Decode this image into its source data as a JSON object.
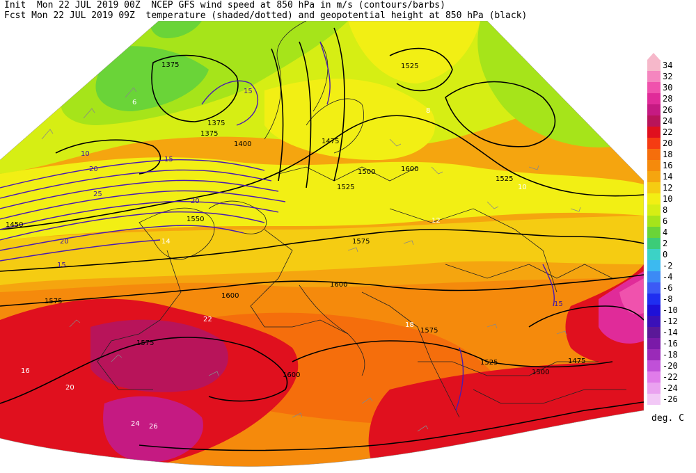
{
  "header": {
    "line1": "Init  Mon 22 JUL 2019 00Z  NCEP GFS wind speed at 850 hPa in m/s (contours/barbs)",
    "line2": "Fcst Mon 22 JUL 2019 09Z  temperature (shaded/dotted) and geopotential height at 850 hPa (black)"
  },
  "legend": {
    "units": "deg. C",
    "entries": [
      {
        "label": "34",
        "color": "#f6b8ca"
      },
      {
        "label": "32",
        "color": "#f586bf"
      },
      {
        "label": "30",
        "color": "#f052ad"
      },
      {
        "label": "28",
        "color": "#e02b99"
      },
      {
        "label": "26",
        "color": "#c51a82"
      },
      {
        "label": "24",
        "color": "#b8145a"
      },
      {
        "label": "22",
        "color": "#e0101e"
      },
      {
        "label": "20",
        "color": "#f53c12"
      },
      {
        "label": "18",
        "color": "#f56e0c"
      },
      {
        "label": "16",
        "color": "#f58a0c"
      },
      {
        "label": "14",
        "color": "#f5a50f"
      },
      {
        "label": "12",
        "color": "#f5cc12"
      },
      {
        "label": "10",
        "color": "#f2ef14"
      },
      {
        "label": "8",
        "color": "#d6ee14"
      },
      {
        "label": "6",
        "color": "#a6e41a"
      },
      {
        "label": "4",
        "color": "#6ad438"
      },
      {
        "label": "2",
        "color": "#3ccc78"
      },
      {
        "label": "0",
        "color": "#3cd2c6"
      },
      {
        "label": "-2",
        "color": "#3cbaf0"
      },
      {
        "label": "-4",
        "color": "#3c8af5"
      },
      {
        "label": "-6",
        "color": "#3c5af5"
      },
      {
        "label": "-8",
        "color": "#1f2ef0"
      },
      {
        "label": "-10",
        "color": "#1e10d8"
      },
      {
        "label": "-12",
        "color": "#3a10b8"
      },
      {
        "label": "-14",
        "color": "#5a1898"
      },
      {
        "label": "-16",
        "color": "#7a1aa8"
      },
      {
        "label": "-18",
        "color": "#9a2ab8"
      },
      {
        "label": "-20",
        "color": "#c050d8"
      },
      {
        "label": "-22",
        "color": "#e07cea"
      },
      {
        "label": "-24",
        "color": "#eaa2f0"
      },
      {
        "label": "-26",
        "color": "#f2c8f6"
      }
    ]
  },
  "map_labels": {
    "height": [
      "1375",
      "1375",
      "1375",
      "1400",
      "1450",
      "1475",
      "1500",
      "1525",
      "1525",
      "1525",
      "1550",
      "1575",
      "1575",
      "1575",
      "1600",
      "1600",
      "1600",
      "1600",
      "1575",
      "1500",
      "1525",
      "1475"
    ],
    "wind": [
      "15",
      "15",
      "20",
      "20",
      "25",
      "15",
      "10",
      "20",
      "15"
    ],
    "temp": [
      "8",
      "6",
      "10",
      "12",
      "14",
      "16",
      "18",
      "20",
      "22",
      "24",
      "26"
    ]
  }
}
